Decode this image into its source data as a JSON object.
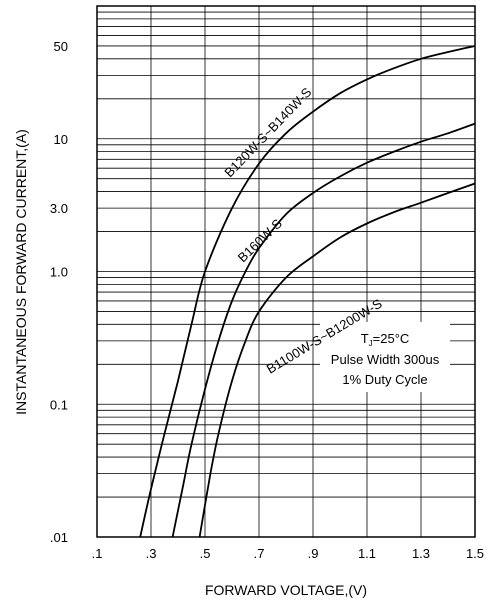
{
  "chart_data": {
    "type": "line",
    "xlabel": "FORWARD VOLTAGE,(V)",
    "ylabel": "INSTANTANEOUS FORWARD CURRENT,(A)",
    "xlim": [
      0.1,
      1.5
    ],
    "ylim": [
      0.01,
      100
    ],
    "y_scale": "log",
    "grid": true,
    "x_ticks": [
      {
        "value": 0.1,
        "label": ".1"
      },
      {
        "value": 0.3,
        "label": ".3"
      },
      {
        "value": 0.5,
        "label": ".5"
      },
      {
        "value": 0.7,
        "label": ".7"
      },
      {
        "value": 0.9,
        "label": ".9"
      },
      {
        "value": 1.1,
        "label": "1.1"
      },
      {
        "value": 1.3,
        "label": "1.3"
      },
      {
        "value": 1.5,
        "label": "1.5"
      }
    ],
    "y_ticks": [
      {
        "value": 0.01,
        "label": ".01"
      },
      {
        "value": 0.1,
        "label": "0.1"
      },
      {
        "value": 1,
        "label": "1.0"
      },
      {
        "value": 3,
        "label": "3.0"
      },
      {
        "value": 10,
        "label": "10"
      },
      {
        "value": 50,
        "label": "50"
      }
    ],
    "series": [
      {
        "name": "B120W-S~B140W-S",
        "x": [
          0.26,
          0.3,
          0.35,
          0.4,
          0.45,
          0.5,
          0.6,
          0.7,
          0.8,
          0.9,
          1.0,
          1.1,
          1.2,
          1.3,
          1.4,
          1.5
        ],
        "y": [
          0.01,
          0.023,
          0.06,
          0.15,
          0.4,
          1.0,
          3.0,
          6.5,
          11,
          16,
          22,
          28,
          34,
          40,
          45,
          50
        ]
      },
      {
        "name": "B160W-S",
        "x": [
          0.38,
          0.42,
          0.45,
          0.5,
          0.55,
          0.6,
          0.65,
          0.7,
          0.8,
          0.9,
          1.0,
          1.1,
          1.2,
          1.3,
          1.4,
          1.5
        ],
        "y": [
          0.01,
          0.025,
          0.05,
          0.13,
          0.3,
          0.6,
          1.0,
          1.5,
          2.7,
          3.9,
          5.2,
          6.6,
          8.0,
          9.5,
          11,
          13
        ]
      },
      {
        "name": "B1100W-S~B1200W-S",
        "x": [
          0.48,
          0.52,
          0.55,
          0.6,
          0.65,
          0.7,
          0.8,
          0.9,
          1.0,
          1.1,
          1.2,
          1.3,
          1.4,
          1.5
        ],
        "y": [
          0.01,
          0.03,
          0.06,
          0.15,
          0.3,
          0.5,
          0.9,
          1.3,
          1.8,
          2.3,
          2.8,
          3.3,
          3.9,
          4.6
        ]
      }
    ],
    "annotations": {
      "tj_prefix": "T",
      "tj_sub": "J",
      "tj_value": "=25°C",
      "pulse_width": "Pulse Width 300us",
      "duty_cycle": "1% Duty Cycle"
    }
  }
}
